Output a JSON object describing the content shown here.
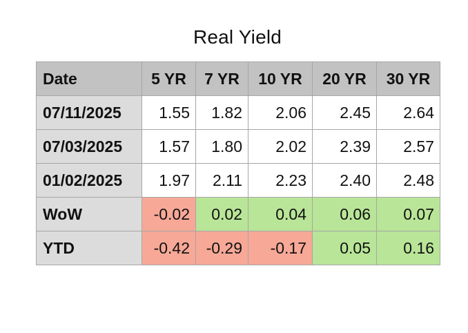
{
  "title": "Real Yield",
  "columns": [
    "Date",
    "5 YR",
    "7 YR",
    "10 YR",
    "20 YR",
    "30 YR"
  ],
  "rows": [
    {
      "label": "07/11/2025",
      "values": [
        "1.55",
        "1.82",
        "2.06",
        "2.45",
        "2.64"
      ]
    },
    {
      "label": "07/03/2025",
      "values": [
        "1.57",
        "1.80",
        "2.02",
        "2.39",
        "2.57"
      ]
    },
    {
      "label": "01/02/2025",
      "values": [
        "1.97",
        "2.11",
        "2.23",
        "2.40",
        "2.48"
      ]
    },
    {
      "label": "WoW",
      "values": [
        "-0.02",
        "0.02",
        "0.04",
        "0.06",
        "0.07"
      ]
    },
    {
      "label": "YTD",
      "values": [
        "-0.42",
        "-0.29",
        "-0.17",
        "0.05",
        "0.16"
      ]
    }
  ],
  "colors": {
    "header_bg": "#c2c2c2",
    "row_label_bg": "#dcdcdc",
    "negative": "#f7a897",
    "positive": "#b8e597"
  }
}
